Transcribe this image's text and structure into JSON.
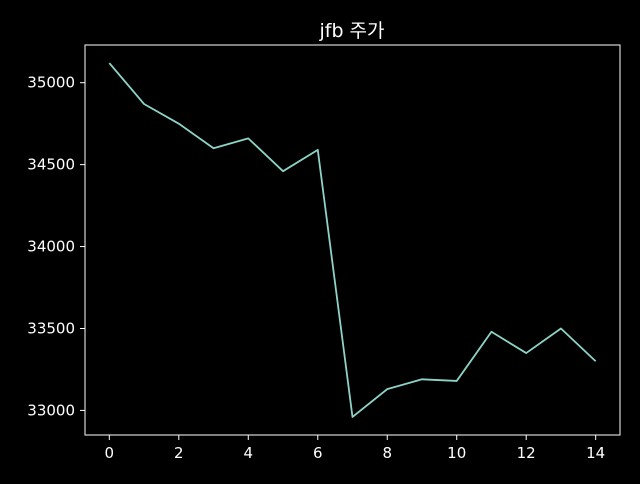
{
  "chart_data": {
    "type": "line",
    "title": "jfb 주가",
    "xlabel": "",
    "ylabel": "",
    "x": [
      0,
      1,
      2,
      3,
      4,
      5,
      6,
      7,
      8,
      9,
      10,
      11,
      12,
      13,
      14
    ],
    "series": [
      {
        "values": [
          35120,
          34870,
          34750,
          34600,
          34660,
          34460,
          34590,
          32960,
          33130,
          33190,
          33180,
          33480,
          33350,
          33500,
          33300
        ]
      }
    ],
    "xlim": [
      -0.7,
      14.7
    ],
    "ylim": [
      32850,
      35230
    ],
    "xticks": [
      0,
      2,
      4,
      6,
      8,
      10,
      12,
      14
    ],
    "yticks": [
      33000,
      33500,
      34000,
      34500,
      35000
    ],
    "grid": false,
    "legend": "none",
    "colors": {
      "background": "#000000",
      "line": "#8dd3c7",
      "axes": "#ffffff",
      "text": "#ffffff"
    }
  }
}
